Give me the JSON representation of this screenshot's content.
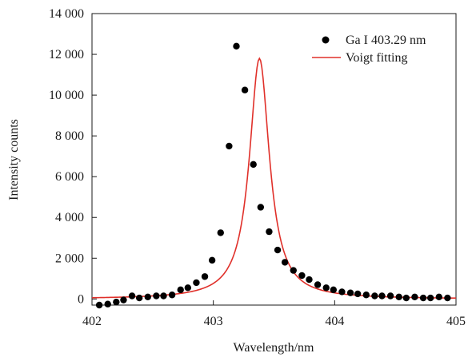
{
  "chart_data": {
    "type": "scatter",
    "title": "",
    "xlabel": "Wavelength/nm",
    "ylabel": "Intensity counts",
    "xlim": [
      402,
      405
    ],
    "ylim": [
      -300,
      14000
    ],
    "x_ticks": [
      402,
      403,
      404,
      405
    ],
    "x_tick_labels": [
      "402",
      "403",
      "404",
      "405"
    ],
    "y_ticks": [
      0,
      2000,
      4000,
      6000,
      8000,
      10000,
      12000,
      14000
    ],
    "y_tick_labels": [
      "0",
      "2 000",
      "4 000",
      "6 000",
      "8 000",
      "10 000",
      "12 000",
      "14 000"
    ],
    "grid": false,
    "legend_position": "top-right",
    "colors": {
      "points": "#000000",
      "fit": "#e0302a",
      "axis": "#1a1a1a"
    },
    "series": [
      {
        "name": "Ga I 403.29 nm",
        "kind": "scatter",
        "x": [
          402.06,
          402.13,
          402.2,
          402.26,
          402.33,
          402.39,
          402.46,
          402.53,
          402.59,
          402.66,
          402.73,
          402.79,
          402.86,
          402.93,
          402.99,
          403.06,
          403.13,
          403.19,
          403.26,
          403.33,
          403.39,
          403.46,
          403.53,
          403.59,
          403.66,
          403.73,
          403.79,
          403.86,
          403.93,
          403.99,
          404.06,
          404.13,
          404.19,
          404.26,
          404.33,
          404.39,
          404.46,
          404.53,
          404.59,
          404.66,
          404.73,
          404.79,
          404.86,
          404.93
        ],
        "y": [
          -300,
          -250,
          -150,
          -50,
          150,
          50,
          100,
          150,
          150,
          200,
          450,
          550,
          800,
          1100,
          1900,
          3250,
          7500,
          12400,
          10250,
          6600,
          4500,
          3300,
          2400,
          1800,
          1400,
          1150,
          950,
          700,
          550,
          450,
          350,
          300,
          250,
          200,
          150,
          150,
          150,
          100,
          50,
          100,
          50,
          50,
          100,
          50
        ]
      },
      {
        "name": "Voigt fitting",
        "kind": "line",
        "center": 403.38,
        "amplitude": 11800,
        "baseline": 0,
        "gamma": 0.1,
        "x": [
          402.0,
          402.2,
          402.4,
          402.6,
          402.8,
          402.9,
          403.0,
          403.1,
          403.2,
          403.25,
          403.3,
          403.34,
          403.38,
          403.42,
          403.46,
          403.5,
          403.56,
          403.6,
          403.7,
          403.8,
          403.9,
          404.0,
          404.2,
          404.4,
          404.6,
          404.8,
          405.0
        ],
        "y": [
          120,
          200,
          250,
          350,
          650,
          1000,
          1600,
          2800,
          5200,
          7000,
          9300,
          11100,
          11800,
          11100,
          9300,
          7000,
          4500,
          3300,
          1900,
          1300,
          950,
          700,
          380,
          230,
          170,
          130,
          100
        ]
      }
    ]
  }
}
